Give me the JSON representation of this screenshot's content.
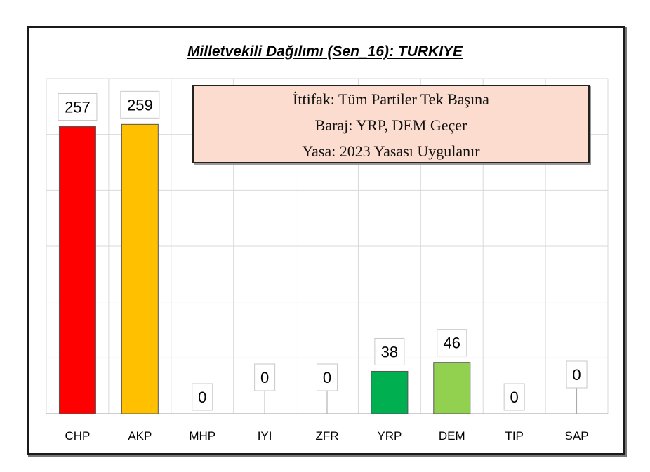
{
  "chart_data": {
    "type": "bar",
    "title": "Milletvekili Dağılımı (Sen_16): TURKIYE",
    "categories": [
      "CHP",
      "AKP",
      "MHP",
      "IYI",
      "ZFR",
      "YRP",
      "DEM",
      "TIP",
      "SAP"
    ],
    "values": [
      257,
      259,
      0,
      0,
      0,
      38,
      46,
      0,
      0
    ],
    "colors": [
      "#ff0000",
      "#ffc000",
      "#cccccc",
      "#cccccc",
      "#cccccc",
      "#00b050",
      "#92d050",
      "#cccccc",
      "#cccccc"
    ],
    "ylim": [
      0,
      300
    ],
    "grid": true,
    "xlabel": "",
    "ylabel": "",
    "annotations": [
      "İttifak: Tüm Partiler Tek Başına",
      "Baraj:  YRP, DEM Geçer",
      "Yasa:   2023 Yasası Uygulanır"
    ]
  }
}
